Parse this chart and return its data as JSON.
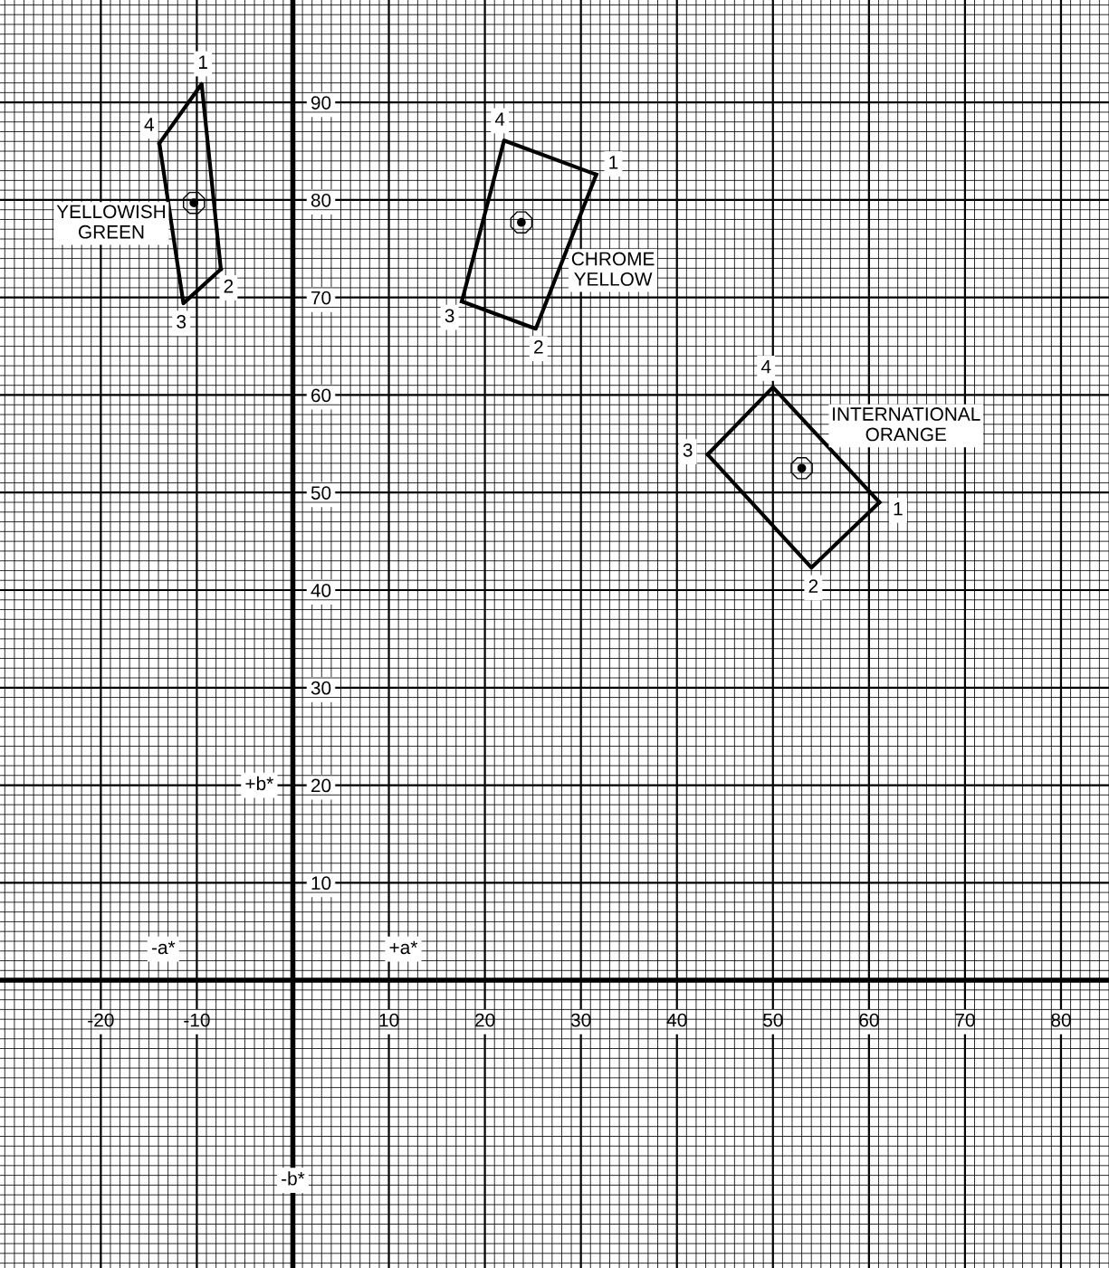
{
  "chart_data": {
    "type": "line",
    "xlim": [
      -30.5,
      85
    ],
    "ylim": [
      -29.5,
      100.5
    ],
    "xticks": [
      -20,
      -10,
      10,
      20,
      30,
      40,
      50,
      60,
      70,
      80
    ],
    "yticks": [
      10,
      20,
      30,
      40,
      50,
      60,
      70,
      80,
      90
    ],
    "grid": true,
    "line_style": "solid",
    "marker": "none",
    "series": [
      {
        "color": "#000000",
        "x": [
          -13.9,
          -9.5,
          -7.5
        ],
        "values": [
          85.8,
          91.9,
          72.9
        ]
      },
      {
        "name": "YELLOWISH\nGREEN",
        "color": "#000000",
        "x": [
          -13.9,
          -11.4,
          -7.5
        ],
        "values": [
          85.8,
          69.4,
          72.9
        ]
      },
      {
        "type": "scatter",
        "marker": "circle",
        "color": "#000000",
        "x": [
          -10.3
        ],
        "values": [
          79.7
        ]
      },
      {
        "color": "#000000",
        "x": [
          17.6,
          22.0,
          31.6
        ],
        "values": [
          69.6,
          86.1,
          82.6
        ]
      },
      {
        "name": "CHROME\nYELLOW",
        "color": "#000000",
        "x": [
          17.6,
          25.3,
          31.6
        ],
        "values": [
          69.6,
          66.8,
          82.6
        ]
      },
      {
        "type": "scatter",
        "marker": "circle",
        "color": "#000000",
        "x": [
          23.8
        ],
        "values": [
          77.7
        ]
      },
      {
        "name": "INTERNATIONAL\nORANGE",
        "color": "#000000",
        "x": [
          43.2,
          50.0,
          61.1
        ],
        "values": [
          53.9,
          60.8,
          49.0
        ]
      },
      {
        "color": "#000000",
        "x": [
          43.2,
          54.0,
          61.1
        ],
        "values": [
          53.9,
          42.3,
          49.0
        ]
      },
      {
        "type": "scatter",
        "marker": "circle",
        "color": "#000000",
        "x": [
          53.0
        ],
        "values": [
          52.5
        ]
      }
    ],
    "annotations": [
      {
        "text": "1",
        "x": -9.5,
        "y": 91.9
      },
      {
        "text": "2",
        "x": -7.5,
        "y": 72.9
      },
      {
        "text": "3",
        "x": -11.4,
        "y": 69.4
      },
      {
        "text": "4",
        "x": -13.9,
        "y": 85.8
      },
      {
        "text": "1",
        "x": 31.6,
        "y": 82.6
      },
      {
        "text": "2",
        "x": 25.3,
        "y": 66.8
      },
      {
        "text": "3",
        "x": 17.6,
        "y": 69.6
      },
      {
        "text": "4",
        "x": 22.0,
        "y": 86.1
      },
      {
        "text": "1",
        "x": 61.1,
        "y": 49.0
      },
      {
        "text": "2",
        "x": 54.0,
        "y": 42.3
      },
      {
        "text": "3",
        "x": 43.2,
        "y": 53.9
      },
      {
        "text": "4",
        "x": 50.0,
        "y": 60.8
      },
      {
        "text": "+a*",
        "x": 11.5,
        "y": 3.2
      },
      {
        "text": "-a*",
        "x": -13.5,
        "y": 3.2
      },
      {
        "text": "+b*",
        "x": -3.5,
        "y": 20
      },
      {
        "text": "-b*",
        "x": 0,
        "y": -20.5
      }
    ]
  }
}
